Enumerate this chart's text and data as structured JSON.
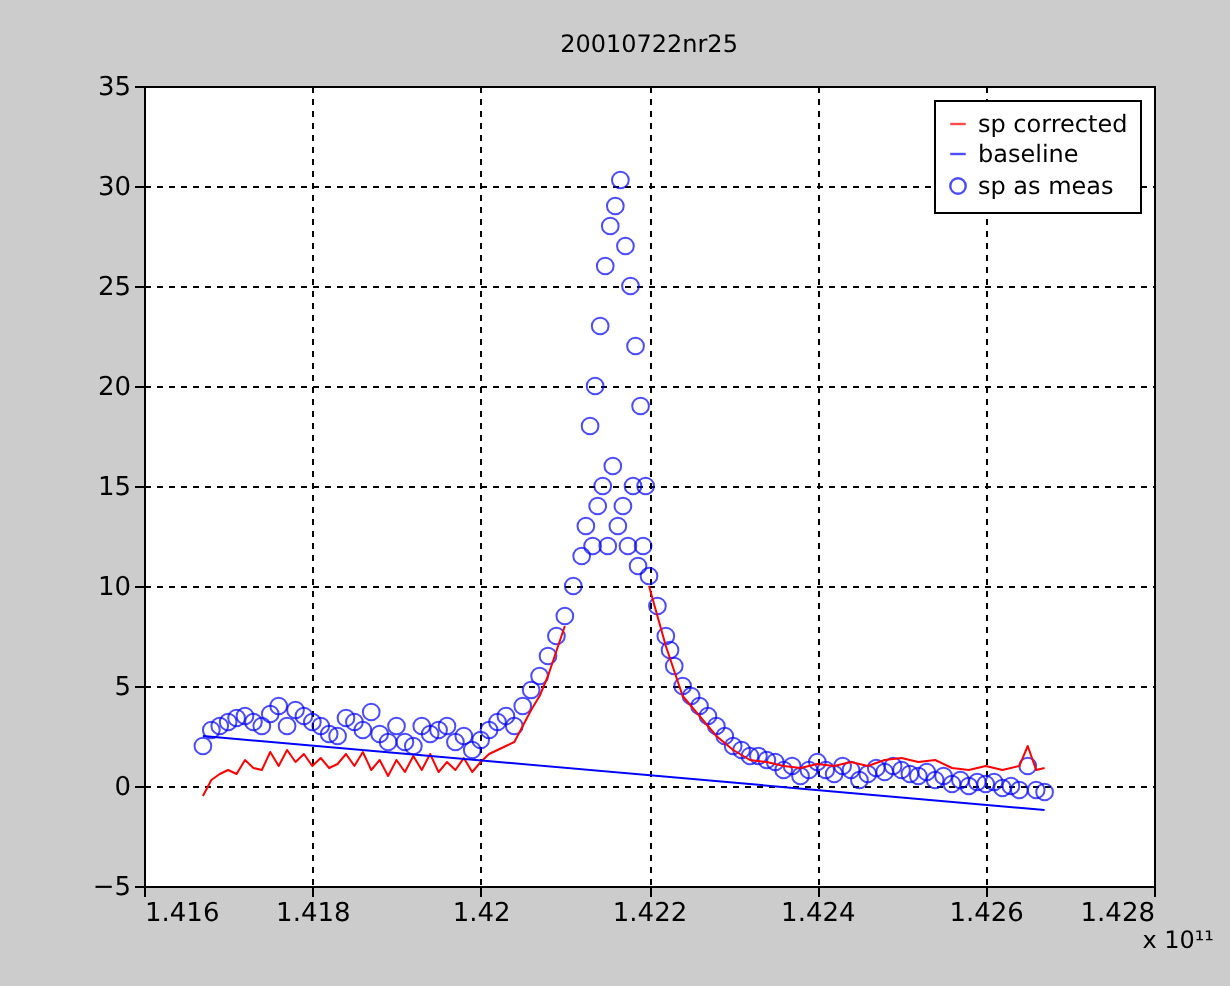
{
  "chart_data": {
    "type": "line",
    "title": "20010722nr25",
    "xlim": [
      1.416,
      1.428
    ],
    "xticks": [
      1.416,
      1.418,
      1.42,
      1.422,
      1.424,
      1.426,
      1.428
    ],
    "ylim": [
      -5,
      35
    ],
    "yticks": [
      -5,
      0,
      5,
      10,
      15,
      20,
      25,
      30,
      35
    ],
    "grid": true,
    "legend": "top right",
    "annotations": [
      "x 10¹¹"
    ],
    "series": [
      {
        "name": "sp corrected",
        "color": "#ff0000",
        "x": [
          1.4167,
          1.4168,
          1.4169,
          1.417,
          1.4171,
          1.4172,
          1.4173,
          1.4174,
          1.4175,
          1.4176,
          1.4177,
          1.4178,
          1.4179,
          1.418,
          1.4181,
          1.4182,
          1.4183,
          1.4184,
          1.4185,
          1.4186,
          1.4187,
          1.4188,
          1.4189,
          1.419,
          1.4191,
          1.4192,
          1.4193,
          1.4194,
          1.4195,
          1.4196,
          1.4197,
          1.4198,
          1.4199,
          1.42,
          1.4201,
          1.4202,
          1.4203,
          1.4204,
          1.4205,
          1.4206,
          1.4207,
          1.4208,
          1.421,
          1.4212,
          1.422,
          1.4222,
          1.4224,
          1.4226,
          1.4228,
          1.423,
          1.4232,
          1.4234,
          1.4236,
          1.4238,
          1.424,
          1.4242,
          1.4244,
          1.4246,
          1.4248,
          1.425,
          1.4252,
          1.4254,
          1.4256,
          1.4258,
          1.426,
          1.4262,
          1.4264,
          1.4265,
          1.4266,
          1.4267
        ],
        "values": [
          -0.5,
          0.3,
          0.6,
          0.8,
          0.6,
          1.3,
          0.9,
          0.8,
          1.7,
          1.0,
          1.8,
          1.2,
          1.6,
          1.0,
          1.4,
          0.9,
          1.1,
          1.6,
          1.0,
          1.7,
          0.8,
          1.3,
          0.5,
          1.3,
          0.7,
          1.5,
          0.8,
          1.6,
          0.7,
          1.2,
          0.8,
          1.4,
          0.7,
          1.2,
          1.6,
          1.8,
          2.0,
          2.2,
          3.0,
          3.8,
          4.5,
          5.5,
          8,
          null,
          10,
          7,
          4.5,
          3.5,
          2.5,
          1.8,
          1.3,
          1.2,
          1.0,
          0.9,
          1.1,
          1.0,
          1.2,
          1.0,
          1.3,
          1.4,
          1.2,
          1.3,
          0.9,
          0.8,
          1.0,
          0.8,
          1.0,
          2.0,
          0.8,
          0.9
        ]
      },
      {
        "name": "baseline",
        "color": "#0000ff",
        "x": [
          1.4167,
          1.4267
        ],
        "values": [
          2.5,
          -1.2
        ]
      },
      {
        "name": "sp as meas",
        "type": "scatter",
        "marker": "circle",
        "color": "#0000ff",
        "x": [
          1.4167,
          1.4168,
          1.4169,
          1.417,
          1.4171,
          1.4172,
          1.4173,
          1.4174,
          1.4175,
          1.4176,
          1.4177,
          1.4178,
          1.4179,
          1.418,
          1.4181,
          1.4182,
          1.4183,
          1.4184,
          1.4185,
          1.4186,
          1.4187,
          1.4188,
          1.4189,
          1.419,
          1.4191,
          1.4192,
          1.4193,
          1.4194,
          1.4195,
          1.4196,
          1.4197,
          1.4198,
          1.4199,
          1.42,
          1.4201,
          1.4202,
          1.4203,
          1.4204,
          1.4205,
          1.4206,
          1.4207,
          1.4208,
          1.4209,
          1.421,
          1.4211,
          1.4212,
          1.42125,
          1.4213,
          1.42133,
          1.42136,
          1.42139,
          1.42142,
          1.42145,
          1.42148,
          1.42151,
          1.42154,
          1.42157,
          1.4216,
          1.42163,
          1.42166,
          1.42169,
          1.42172,
          1.42175,
          1.42178,
          1.42181,
          1.42184,
          1.42187,
          1.4219,
          1.42193,
          1.42196,
          1.422,
          1.4221,
          1.4222,
          1.42225,
          1.4223,
          1.4224,
          1.4225,
          1.4226,
          1.4227,
          1.4228,
          1.4229,
          1.423,
          1.4231,
          1.4232,
          1.4233,
          1.4234,
          1.4235,
          1.4236,
          1.4237,
          1.4238,
          1.4239,
          1.424,
          1.4241,
          1.4242,
          1.4243,
          1.4244,
          1.4245,
          1.4246,
          1.4247,
          1.4248,
          1.4249,
          1.425,
          1.4251,
          1.4252,
          1.4253,
          1.4254,
          1.4255,
          1.4256,
          1.4257,
          1.4258,
          1.4259,
          1.426,
          1.4261,
          1.4262,
          1.4263,
          1.4264,
          1.4265,
          1.4266,
          1.4267
        ],
        "values": [
          2.0,
          2.8,
          3.0,
          3.2,
          3.4,
          3.5,
          3.2,
          3.0,
          3.6,
          4.0,
          3.0,
          3.8,
          3.5,
          3.2,
          3.0,
          2.6,
          2.5,
          3.4,
          3.2,
          2.8,
          3.7,
          2.6,
          2.2,
          3.0,
          2.2,
          2.0,
          3.0,
          2.6,
          2.8,
          3.0,
          2.2,
          2.5,
          1.8,
          2.3,
          2.8,
          3.2,
          3.5,
          3.0,
          4.0,
          4.8,
          5.5,
          6.5,
          7.5,
          8.5,
          10.0,
          11.5,
          13,
          18,
          12,
          20,
          14,
          23,
          15,
          26,
          12,
          28,
          16,
          29,
          13,
          30.3,
          14,
          27,
          12,
          25,
          15,
          22,
          11,
          19,
          12,
          15,
          10.5,
          9,
          7.5,
          6.8,
          6,
          5,
          4.5,
          4,
          3.5,
          3,
          2.5,
          2,
          1.8,
          1.5,
          1.5,
          1.3,
          1.2,
          0.8,
          1.0,
          0.5,
          0.8,
          1.2,
          0.8,
          0.6,
          1.0,
          0.8,
          0.3,
          0.6,
          0.9,
          0.7,
          1.0,
          0.8,
          0.6,
          0.5,
          0.7,
          0.3,
          0.5,
          0.1,
          0.3,
          0.0,
          0.2,
          0.1,
          0.2,
          -0.1,
          0.0,
          -0.2,
          1.0,
          -0.2,
          -0.3
        ]
      }
    ]
  }
}
